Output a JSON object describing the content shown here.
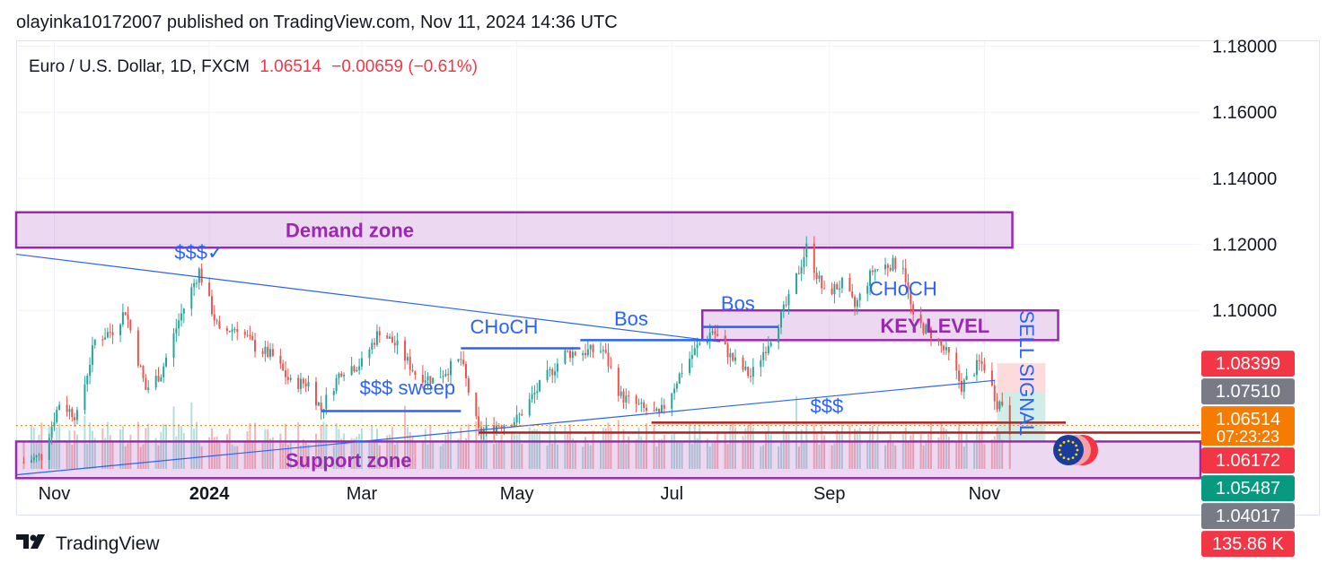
{
  "header": {
    "published": "olayinka10172007 published on TradingView.com, Nov 11, 2024 14:36 UTC"
  },
  "symbol": {
    "name": "Euro / U.S. Dollar, 1D, FXCM",
    "price": "1.06514",
    "change": "−0.00659 (−0.61%)"
  },
  "footer": {
    "brand": "TradingView",
    "logo": "tv-logo-icon"
  },
  "colors": {
    "up": "#26a69a",
    "down": "#ef5350",
    "annotation_purple": "#9c27b0",
    "annotation_blue": "#2962ff",
    "level_red": "#b71c1c"
  },
  "chart_data": {
    "type": "candlestick",
    "title": "Euro / U.S. Dollar, 1D, FXCM",
    "x_ticks": [
      {
        "label": "Nov",
        "date": "2023-11-01"
      },
      {
        "label": "2024",
        "date": "2024-01-01",
        "bold": true
      },
      {
        "label": "Mar",
        "date": "2024-03-01"
      },
      {
        "label": "May",
        "date": "2024-05-01"
      },
      {
        "label": "Jul",
        "date": "2024-07-01"
      },
      {
        "label": "Sep",
        "date": "2024-09-01"
      },
      {
        "label": "Nov",
        "date": "2024-11-01"
      }
    ],
    "x_range": [
      "2023-10-17",
      "2025-01-25"
    ],
    "y_range": [
      1.052,
      1.1815
    ],
    "y_ticks": [
      "1.18000",
      "1.16000",
      "1.14000",
      "1.12000",
      "1.10000"
    ],
    "price_badges": [
      {
        "value": "1.08399",
        "price": 1.08399,
        "color": "#f23645"
      },
      {
        "value": "1.07510",
        "price": 1.0751,
        "color": "#787b86"
      },
      {
        "value": "1.06514",
        "sub": "07:23:23",
        "price": 1.06514,
        "color": "#f57c00"
      },
      {
        "value": "1.06172",
        "price": 1.06172,
        "color": "#f23645"
      },
      {
        "value": "1.05487",
        "price": 1.05487,
        "color": "#089981"
      },
      {
        "value": "1.04017",
        "price": 1.04017,
        "color": "#787b86"
      },
      {
        "value": "135.86 K",
        "color": "#f23645",
        "partial": true
      }
    ],
    "anchors": [
      [
        "2023-10-20",
        1.054
      ],
      [
        "2023-10-27",
        1.056
      ],
      [
        "2023-11-03",
        1.072
      ],
      [
        "2023-11-10",
        1.068
      ],
      [
        "2023-11-17",
        1.091
      ],
      [
        "2023-11-24",
        1.094
      ],
      [
        "2023-11-29",
        1.1
      ],
      [
        "2023-12-07",
        1.076
      ],
      [
        "2023-12-13",
        1.081
      ],
      [
        "2023-12-20",
        1.097
      ],
      [
        "2023-12-28",
        1.112
      ],
      [
        "2024-01-05",
        1.093
      ],
      [
        "2024-01-12",
        1.095
      ],
      [
        "2024-01-19",
        1.089
      ],
      [
        "2024-01-26",
        1.086
      ],
      [
        "2024-02-02",
        1.078
      ],
      [
        "2024-02-09",
        1.078
      ],
      [
        "2024-02-14",
        1.07
      ],
      [
        "2024-02-22",
        1.082
      ],
      [
        "2024-03-01",
        1.084
      ],
      [
        "2024-03-08",
        1.094
      ],
      [
        "2024-03-15",
        1.089
      ],
      [
        "2024-03-22",
        1.081
      ],
      [
        "2024-03-29",
        1.079
      ],
      [
        "2024-04-09",
        1.085
      ],
      [
        "2024-04-16",
        1.063
      ],
      [
        "2024-04-22",
        1.065
      ],
      [
        "2024-05-01",
        1.067
      ],
      [
        "2024-05-10",
        1.077
      ],
      [
        "2024-05-20",
        1.087
      ],
      [
        "2024-06-04",
        1.088
      ],
      [
        "2024-06-11",
        1.074
      ],
      [
        "2024-06-20",
        1.07
      ],
      [
        "2024-06-26",
        1.068
      ],
      [
        "2024-07-05",
        1.082
      ],
      [
        "2024-07-12",
        1.09
      ],
      [
        "2024-07-17",
        1.094
      ],
      [
        "2024-07-25",
        1.085
      ],
      [
        "2024-08-01",
        1.08
      ],
      [
        "2024-08-09",
        1.092
      ],
      [
        "2024-08-16",
        1.103
      ],
      [
        "2024-08-23",
        1.119
      ],
      [
        "2024-08-30",
        1.105
      ],
      [
        "2024-09-06",
        1.108
      ],
      [
        "2024-09-11",
        1.101
      ],
      [
        "2024-09-18",
        1.112
      ],
      [
        "2024-09-25",
        1.114
      ],
      [
        "2024-09-30",
        1.114
      ],
      [
        "2024-10-04",
        1.097
      ],
      [
        "2024-10-11",
        1.093
      ],
      [
        "2024-10-18",
        1.086
      ],
      [
        "2024-10-23",
        1.077
      ],
      [
        "2024-10-30",
        1.084
      ],
      [
        "2024-11-01",
        1.083
      ],
      [
        "2024-11-06",
        1.072
      ],
      [
        "2024-11-08",
        1.072
      ],
      [
        "2024-11-11",
        1.065
      ]
    ],
    "zones": [
      {
        "name": "demand-zone",
        "label": "Demand zone",
        "from": "2023-10-17",
        "to": "2024-11-12",
        "high": 1.1297,
        "low": 1.119
      },
      {
        "name": "key-level-zone",
        "label": "KEY LEVEL",
        "from": "2024-07-13",
        "to": "2024-11-30",
        "high": 1.1,
        "low": 1.091
      },
      {
        "name": "support-zone",
        "label": "Support zone",
        "from": "2023-10-17",
        "to": "2025-01-25",
        "high": 1.0603,
        "low": 1.0492
      }
    ],
    "lines": [
      {
        "name": "falling-trendline",
        "from": [
          "2023-10-17",
          1.117
        ],
        "to": [
          "2024-07-20",
          1.0905
        ]
      },
      {
        "name": "rising-trendline",
        "from": [
          "2023-10-17",
          1.0502
        ],
        "to": [
          "2024-11-05",
          1.0788
        ]
      }
    ],
    "levels": [
      {
        "name": "choch-level-1",
        "from": "2024-04-09",
        "to": "2024-05-26",
        "price": 1.0885
      },
      {
        "name": "sweep-level",
        "from": "2024-02-14",
        "to": "2024-04-09",
        "price": 1.0695
      },
      {
        "name": "bos-level-1",
        "from": "2024-05-26",
        "to": "2024-07-18",
        "price": 1.091
      },
      {
        "name": "bos-level-2",
        "from": "2024-07-13",
        "to": "2024-08-12",
        "price": 1.095
      },
      {
        "name": "ss-level-red",
        "from": "2024-06-23",
        "to": "2024-12-03",
        "price": 1.066,
        "color": "#b71c1c"
      },
      {
        "name": "red-level-low",
        "from": "2024-04-16",
        "to": "2025-01-25",
        "price": 1.063,
        "color": "#b71c1c"
      }
    ],
    "annotations": [
      {
        "name": "ss-check-label",
        "text": "$$$✓",
        "date": "2023-12-28",
        "price": 1.1155,
        "color": "#2962ff"
      },
      {
        "name": "sweep-label",
        "text": "$$$ sweep",
        "date": "2024-03-19",
        "price": 1.0745,
        "color": "#2962ff"
      },
      {
        "name": "choch-label-1",
        "text": "CHoCH",
        "date": "2024-04-26",
        "price": 1.093,
        "color": "#2962ff"
      },
      {
        "name": "bos-label-1",
        "text": "Bos",
        "date": "2024-06-15",
        "price": 1.0955,
        "color": "#2962ff"
      },
      {
        "name": "bos-label-2",
        "text": "Bos",
        "date": "2024-07-27",
        "price": 1.1,
        "color": "#2962ff"
      },
      {
        "name": "choch-label-2",
        "text": "CHoCH",
        "date": "2024-09-30",
        "price": 1.1045,
        "color": "#2962ff"
      },
      {
        "name": "ss-label",
        "text": "$$$",
        "date": "2024-08-31",
        "price": 1.069,
        "color": "#2962ff"
      },
      {
        "name": "sell-signal-label",
        "text": "SELL SIGNAL",
        "date": "2024-11-15",
        "price": 1.081,
        "color": "#2962ff",
        "rotate": 90
      }
    ],
    "position_tool": {
      "from": "2024-11-06",
      "to": "2024-11-25",
      "top": 1.084,
      "entry": 1.0751,
      "bottom": 1.0605
    }
  }
}
